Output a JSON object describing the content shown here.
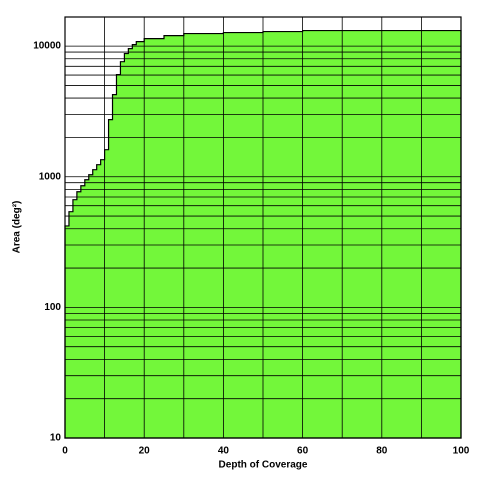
{
  "chart_data": {
    "type": "area",
    "step": true,
    "x_label": "Depth of Coverage",
    "y_label": "Area (deg²)",
    "x": [
      0,
      1,
      2,
      3,
      4,
      5,
      6,
      7,
      8,
      9,
      10,
      11,
      12,
      13,
      14,
      15,
      16,
      17,
      18,
      20,
      25,
      30,
      40,
      50,
      60
    ],
    "values": [
      420,
      540,
      667,
      767,
      853,
      948,
      1035,
      1132,
      1236,
      1350,
      1610,
      2735,
      4250,
      6050,
      7600,
      8770,
      9570,
      10260,
      10820,
      11400,
      12030,
      12470,
      12690,
      12920,
      13150
    ],
    "color": "#73f73a",
    "xlim": [
      0,
      100
    ],
    "ylim": [
      10,
      16700
    ],
    "log_y": true,
    "xticks": [
      0,
      20,
      40,
      60,
      80,
      100
    ],
    "x_minor_ticks": [
      10,
      30,
      50,
      70,
      90
    ],
    "yticks": [
      10,
      100,
      1000,
      10000
    ],
    "y_minor_ticks": [
      20,
      30,
      40,
      50,
      60,
      70,
      80,
      90,
      200,
      300,
      400,
      500,
      600,
      700,
      800,
      900,
      2000,
      3000,
      4000,
      5000,
      6000,
      7000,
      8000,
      9000
    ],
    "grid": true
  }
}
